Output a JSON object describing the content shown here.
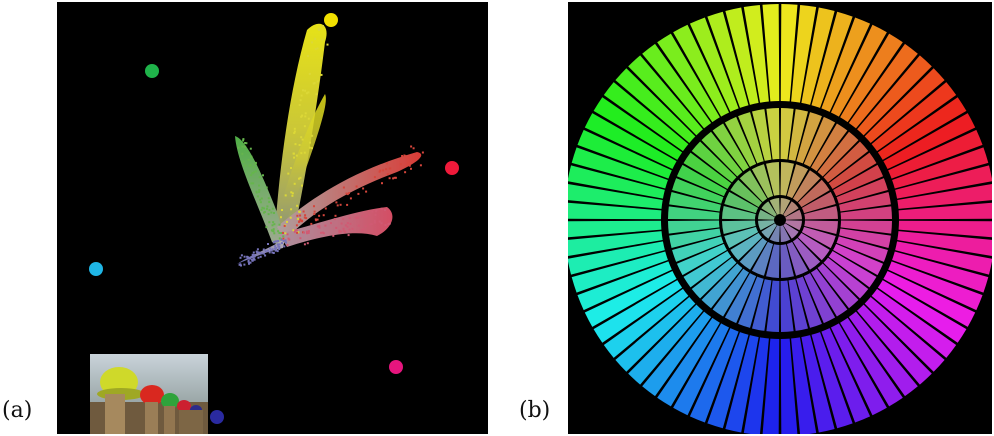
{
  "figure": {
    "panel_a_label": "(a)",
    "panel_b_label": "(b)"
  },
  "panel_a": {
    "background": "#000000",
    "anchor_markers": [
      {
        "name": "yellow",
        "color": "#f2e000"
      },
      {
        "name": "green",
        "color": "#1fb34a"
      },
      {
        "name": "red",
        "color": "#ef1a3a"
      },
      {
        "name": "cyan",
        "color": "#1fb6e6"
      },
      {
        "name": "magenta",
        "color": "#e6157e"
      },
      {
        "name": "blue",
        "color": "#2a2aa0"
      }
    ],
    "inset_photo": "peppers-photo-inset"
  },
  "panel_b": {
    "background": "#000000",
    "wheel": {
      "outer_segments": 72,
      "middle_segments": 48,
      "inner_segments": 24,
      "center_segments": 12
    }
  }
}
